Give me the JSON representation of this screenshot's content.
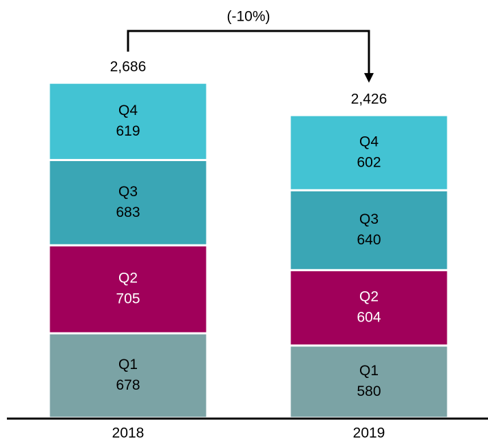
{
  "chart_data": {
    "type": "stacked_bar",
    "categories": [
      "2018",
      "2019"
    ],
    "series": [
      {
        "name": "Q1",
        "color": "#7ba3a5",
        "values": [
          678,
          580
        ]
      },
      {
        "name": "Q2",
        "color": "#a0005a",
        "values": [
          705,
          604
        ]
      },
      {
        "name": "Q3",
        "color": "#3aa6b5",
        "values": [
          683,
          640
        ]
      },
      {
        "name": "Q4",
        "color": "#43c3d3",
        "values": [
          619,
          602
        ]
      }
    ],
    "totals": [
      2686,
      2426
    ],
    "total_labels": [
      "2,686",
      "2,426"
    ],
    "annotation": "(-10%)"
  }
}
